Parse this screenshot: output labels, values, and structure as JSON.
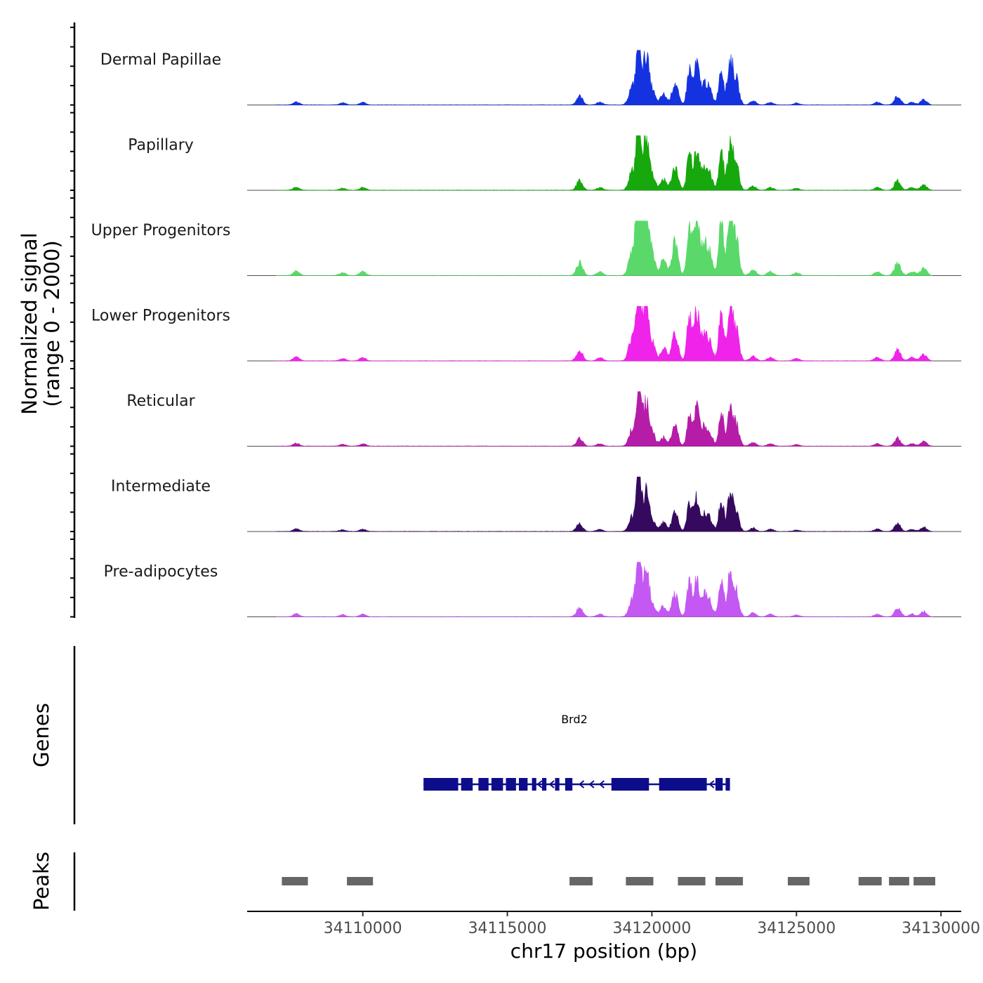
{
  "chart_data": {
    "type": "area",
    "title": "",
    "ylabel_line1": "Normalized signal",
    "ylabel_line2": "(range 0 - 2000)",
    "xlabel": "chr17 position (bp)",
    "chromosome": "chr17",
    "xlim": [
      34106000,
      34130700
    ],
    "ylim": [
      0,
      2000
    ],
    "x_ticks": [
      34110000,
      34115000,
      34120000,
      34125000,
      34130000
    ],
    "x_tick_labels": [
      "34110000",
      "34115000",
      "34120000",
      "34125000",
      "34130000"
    ],
    "peaks_centers": [
      [
        34107700,
        70
      ],
      [
        34109300,
        45
      ],
      [
        34110000,
        60
      ],
      [
        34117500,
        200
      ],
      [
        34118200,
        60
      ],
      [
        34119300,
        380
      ],
      [
        34119550,
        1750
      ],
      [
        34119800,
        1100
      ],
      [
        34120000,
        350
      ],
      [
        34120400,
        240
      ],
      [
        34120800,
        500
      ],
      [
        34121300,
        800
      ],
      [
        34121550,
        900
      ],
      [
        34121800,
        450
      ],
      [
        34122000,
        300
      ],
      [
        34122400,
        850
      ],
      [
        34122700,
        950
      ],
      [
        34122900,
        600
      ],
      [
        34123500,
        90
      ],
      [
        34124100,
        60
      ],
      [
        34125000,
        40
      ],
      [
        34127800,
        60
      ],
      [
        34128500,
        200
      ],
      [
        34129000,
        60
      ],
      [
        34129400,
        120
      ]
    ],
    "series": [
      {
        "name": "Dermal Papillae",
        "color": "#1432e0",
        "scale": 1.0
      },
      {
        "name": "Papillary",
        "color": "#16a80c",
        "scale": 1.05
      },
      {
        "name": "Upper Progenitors",
        "color": "#5ad96a",
        "scale": 1.5
      },
      {
        "name": "Lower Progenitors",
        "color": "#f023ea",
        "scale": 1.25
      },
      {
        "name": "Reticular",
        "color": "#b51ca8",
        "scale": 0.9
      },
      {
        "name": "Intermediate",
        "color": "#350a5e",
        "scale": 0.85
      },
      {
        "name": "Pre-adipocytes",
        "color": "#c458f2",
        "scale": 1.0
      }
    ],
    "genes_track_label": "Genes",
    "gene": {
      "name": "Brd2",
      "start": 34112100,
      "end": 34122700,
      "strand": "-",
      "color": "#0d0d8c",
      "exons": [
        [
          34112100,
          34113300
        ],
        [
          34113400,
          34113800
        ],
        [
          34114000,
          34114350
        ],
        [
          34114450,
          34114850
        ],
        [
          34114950,
          34115300
        ],
        [
          34115400,
          34115700
        ],
        [
          34115850,
          34116000
        ],
        [
          34116200,
          34116350
        ],
        [
          34116650,
          34116800
        ],
        [
          34117000,
          34117250
        ],
        [
          34118600,
          34119900
        ],
        [
          34120250,
          34121900
        ],
        [
          34122200,
          34122450
        ],
        [
          34122550,
          34122700
        ]
      ]
    },
    "peaks_track_label": "Peaks",
    "peaks": [
      [
        34107200,
        34108100
      ],
      [
        34109450,
        34110350
      ],
      [
        34117150,
        34117950
      ],
      [
        34119100,
        34120050
      ],
      [
        34120900,
        34121850
      ],
      [
        34122200,
        34123150
      ],
      [
        34124700,
        34125450
      ],
      [
        34127150,
        34127950
      ],
      [
        34128200,
        34128900
      ],
      [
        34129050,
        34129800
      ]
    ]
  }
}
